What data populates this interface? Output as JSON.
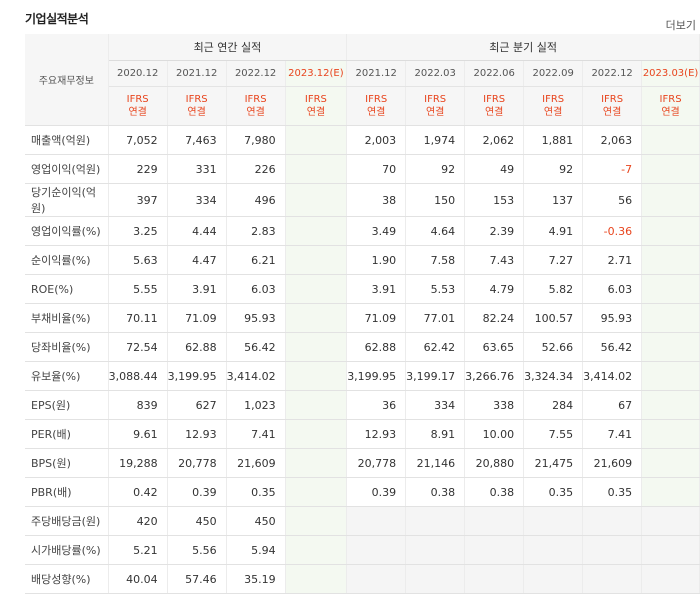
{
  "title": "기업실적분석",
  "more_label": "더보기",
  "corner_label": "주요재무정보",
  "annual_group": "최근 연간 실적",
  "quarter_group": "최근 분기 실적",
  "annual_periods": [
    "2020.12",
    "2021.12",
    "2022.12",
    "2023.12(E)"
  ],
  "quarter_periods": [
    "2021.12",
    "2022.03",
    "2022.06",
    "2022.09",
    "2022.12",
    "2023.03(E)"
  ],
  "ifrs_top": "IFRS",
  "ifrs_bottom": "연결",
  "rows": [
    {
      "label": "매출액(억원)",
      "annual": [
        "7,052",
        "7,463",
        "7,980",
        ""
      ],
      "quarter": [
        "2,003",
        "1,974",
        "2,062",
        "1,881",
        "2,063",
        ""
      ]
    },
    {
      "label": "영업이익(억원)",
      "annual": [
        "229",
        "331",
        "226",
        ""
      ],
      "quarter": [
        "70",
        "92",
        "49",
        "92",
        "-7",
        ""
      ]
    },
    {
      "label": "당기순이익(억원)",
      "annual": [
        "397",
        "334",
        "496",
        ""
      ],
      "quarter": [
        "38",
        "150",
        "153",
        "137",
        "56",
        ""
      ]
    },
    {
      "label": "영업이익률(%)",
      "annual": [
        "3.25",
        "4.44",
        "2.83",
        ""
      ],
      "quarter": [
        "3.49",
        "4.64",
        "2.39",
        "4.91",
        "-0.36",
        ""
      ]
    },
    {
      "label": "순이익률(%)",
      "annual": [
        "5.63",
        "4.47",
        "6.21",
        ""
      ],
      "quarter": [
        "1.90",
        "7.58",
        "7.43",
        "7.27",
        "2.71",
        ""
      ]
    },
    {
      "label": "ROE(%)",
      "annual": [
        "5.55",
        "3.91",
        "6.03",
        ""
      ],
      "quarter": [
        "3.91",
        "5.53",
        "4.79",
        "5.82",
        "6.03",
        ""
      ]
    },
    {
      "label": "부채비율(%)",
      "annual": [
        "70.11",
        "71.09",
        "95.93",
        ""
      ],
      "quarter": [
        "71.09",
        "77.01",
        "82.24",
        "100.57",
        "95.93",
        ""
      ]
    },
    {
      "label": "당좌비율(%)",
      "annual": [
        "72.54",
        "62.88",
        "56.42",
        ""
      ],
      "quarter": [
        "62.88",
        "62.42",
        "63.65",
        "52.66",
        "56.42",
        ""
      ]
    },
    {
      "label": "유보율(%)",
      "annual": [
        "3,088.44",
        "3,199.95",
        "3,414.02",
        ""
      ],
      "quarter": [
        "3,199.95",
        "3,199.17",
        "3,266.76",
        "3,324.34",
        "3,414.02",
        ""
      ]
    },
    {
      "label": "EPS(원)",
      "annual": [
        "839",
        "627",
        "1,023",
        ""
      ],
      "quarter": [
        "36",
        "334",
        "338",
        "284",
        "67",
        ""
      ]
    },
    {
      "label": "PER(배)",
      "annual": [
        "9.61",
        "12.93",
        "7.41",
        ""
      ],
      "quarter": [
        "12.93",
        "8.91",
        "10.00",
        "7.55",
        "7.41",
        ""
      ]
    },
    {
      "label": "BPS(원)",
      "annual": [
        "19,288",
        "20,778",
        "21,609",
        ""
      ],
      "quarter": [
        "20,778",
        "21,146",
        "20,880",
        "21,475",
        "21,609",
        ""
      ]
    },
    {
      "label": "PBR(배)",
      "annual": [
        "0.42",
        "0.39",
        "0.35",
        ""
      ],
      "quarter": [
        "0.39",
        "0.38",
        "0.38",
        "0.35",
        "0.35",
        ""
      ]
    },
    {
      "label": "주당배당금(원)",
      "annual": [
        "420",
        "450",
        "450",
        ""
      ],
      "quarter": null
    },
    {
      "label": "시가배당률(%)",
      "annual": [
        "5.21",
        "5.56",
        "5.94",
        ""
      ],
      "quarter": null
    },
    {
      "label": "배당성향(%)",
      "annual": [
        "40.04",
        "57.46",
        "35.19",
        ""
      ],
      "quarter": null
    }
  ],
  "colors": {
    "negative": "#e8451e",
    "estimate_bg": "#f4f9f1",
    "header_bg": "#f6f6f6"
  }
}
